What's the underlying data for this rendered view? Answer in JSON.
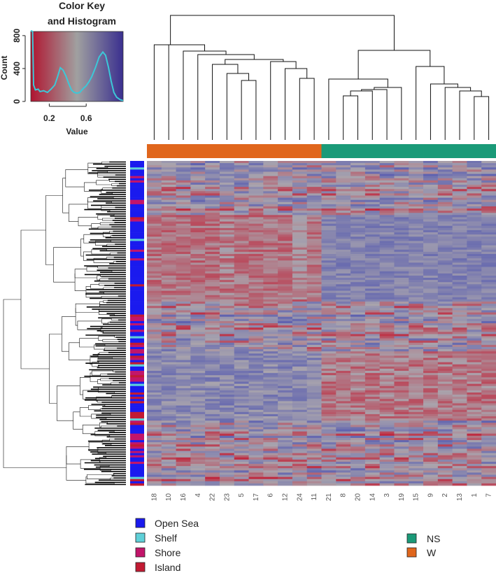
{
  "chart_data": {
    "type": "heatmap",
    "color_key": {
      "title_line1": "Color Key",
      "title_line2": "and Histogram",
      "xlabel": "Value",
      "ylabel": "Count",
      "x_ticks": [
        "0.2",
        "0.6"
      ],
      "x_tick_values": [
        0.2,
        0.6
      ],
      "y_ticks": [
        "0",
        "400",
        "800"
      ],
      "y_tick_values": [
        0,
        400,
        800
      ],
      "xlim": [
        0,
        1
      ],
      "ylim": [
        0,
        850
      ],
      "gradient": [
        "#b01530",
        "#a0a0a0",
        "#3a2f8f"
      ],
      "histogram_color": "#3cc8d8",
      "histogram": [
        [
          0.0,
          860
        ],
        [
          0.02,
          850
        ],
        [
          0.03,
          200
        ],
        [
          0.05,
          140
        ],
        [
          0.08,
          150
        ],
        [
          0.1,
          120
        ],
        [
          0.14,
          130
        ],
        [
          0.18,
          110
        ],
        [
          0.22,
          150
        ],
        [
          0.26,
          200
        ],
        [
          0.29,
          300
        ],
        [
          0.32,
          410
        ],
        [
          0.35,
          380
        ],
        [
          0.38,
          310
        ],
        [
          0.41,
          220
        ],
        [
          0.44,
          140
        ],
        [
          0.47,
          110
        ],
        [
          0.5,
          100
        ],
        [
          0.53,
          110
        ],
        [
          0.57,
          160
        ],
        [
          0.6,
          190
        ],
        [
          0.63,
          240
        ],
        [
          0.66,
          300
        ],
        [
          0.7,
          410
        ],
        [
          0.74,
          540
        ],
        [
          0.78,
          600
        ],
        [
          0.81,
          560
        ],
        [
          0.84,
          420
        ],
        [
          0.87,
          250
        ],
        [
          0.9,
          110
        ],
        [
          0.93,
          50
        ],
        [
          0.97,
          20
        ],
        [
          1.0,
          10
        ]
      ]
    },
    "columns": [
      "18",
      "10",
      "16",
      "4",
      "22",
      "23",
      "5",
      "17",
      "6",
      "12",
      "24",
      "11",
      "21",
      "8",
      "20",
      "14",
      "3",
      "19",
      "15",
      "9",
      "2",
      "13",
      "1",
      "7"
    ],
    "column_groups": [
      "W",
      "W",
      "W",
      "W",
      "W",
      "W",
      "W",
      "W",
      "W",
      "W",
      "W",
      "W",
      "NS",
      "NS",
      "NS",
      "NS",
      "NS",
      "NS",
      "NS",
      "NS",
      "NS",
      "NS",
      "NS",
      "NS"
    ],
    "row_count": 150,
    "palette": {
      "red": "#c0243a",
      "gray": "#a9a4ad",
      "blue": "#5b5fb0"
    },
    "group_colors": {
      "NS": "#1a9a78",
      "W": "#e0661c"
    },
    "region_colors": {
      "Open Sea": "#1a1aee",
      "Shelf": "#5fd0d8",
      "Shore": "#c2156a",
      "Island": "#c21a33"
    },
    "legend_regions": [
      "Open Sea",
      "Shelf",
      "Shore",
      "Island"
    ],
    "legend_groups": [
      "NS",
      "W"
    ]
  }
}
